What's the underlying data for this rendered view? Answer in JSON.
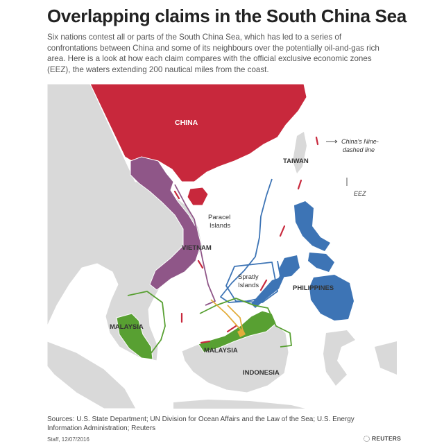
{
  "title": "Overlapping claims in the South China Sea",
  "subtitle": "Six nations contest all or parts of the South China Sea, which has led to a series of confrontations between China and some of its neighbours over the potentially oil-and-gas rich area. Here is a look at how each claim compares with the official exclusive economic zones (EEZ), the waters extending 200 nautical miles from the coast.",
  "map": {
    "labels": {
      "china": "CHINA",
      "taiwan": "TAIWAN",
      "vietnam": "VIETNAM",
      "paracel_line1": "Paracel",
      "paracel_line2": "Islands",
      "spratly_line1": "Spratly",
      "spratly_line2": "Islands",
      "philippines": "PHILIPPINES",
      "malaysia_west": "MALAYSIA",
      "malaysia_east": "MALAYSIA",
      "indonesia": "INDONESIA"
    },
    "legend": {
      "nine_dash_line1": "China's Nine-",
      "nine_dash_line2": "dashed line",
      "eez": "EEZ"
    },
    "colors": {
      "china": "#c8283c",
      "vietnam": "#8f5688",
      "philippines": "#3d74b5",
      "malaysia": "#58a032",
      "brunei": "#e3ad3b",
      "land": "#d9d9d9",
      "sea": "#ffffff"
    }
  },
  "sources": "Sources: U.S. State Department; UN Division for Ocean Affairs and the Law of the Sea; U.S. Energy Information Administration; Reuters",
  "credit": "Staff, 12/07/2016",
  "logo": "REUTERS"
}
